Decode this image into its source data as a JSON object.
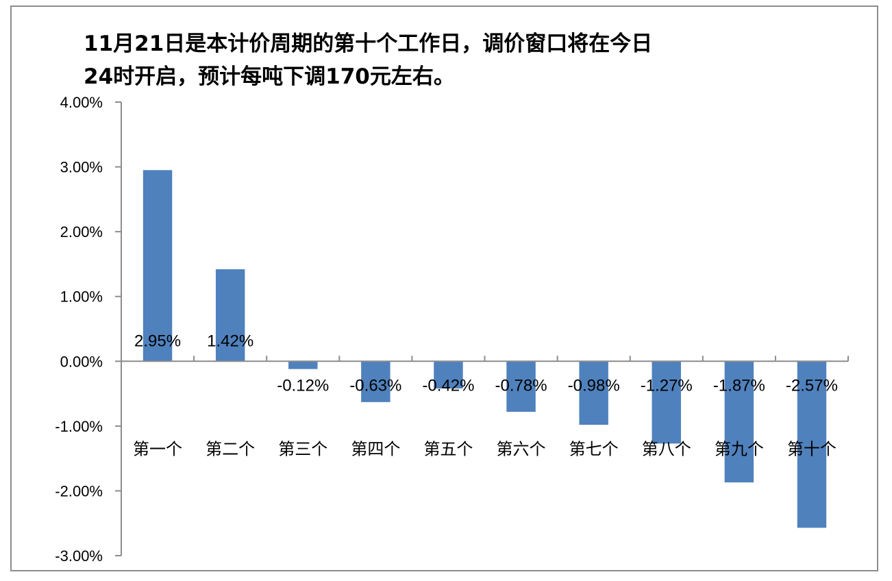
{
  "chart_data": {
    "type": "bar",
    "title_lines": [
      "11月21日是本计价周期的第十个工作日，调价窗口将在今日",
      "24时开启，预计每吨下调170元左右。"
    ],
    "categories": [
      "第一个",
      "第二个",
      "第三个",
      "第四个",
      "第五个",
      "第六个",
      "第七个",
      "第八个",
      "第九个",
      "第十个"
    ],
    "values": [
      2.95,
      1.42,
      -0.12,
      -0.63,
      -0.42,
      -0.78,
      -0.98,
      -1.27,
      -1.87,
      -2.57
    ],
    "data_labels": [
      "2.95%",
      "1.42%",
      "-0.12%",
      "-0.63%",
      "-0.42%",
      "-0.78%",
      "-0.98%",
      "-1.27%",
      "-1.87%",
      "-2.57%"
    ],
    "y_ticks": [
      4,
      3,
      2,
      1,
      0,
      -1,
      -2,
      -3
    ],
    "y_tick_labels": [
      "4.00%",
      "3.00%",
      "2.00%",
      "1.00%",
      "0.00%",
      "-1.00%",
      "-2.00%",
      "-3.00%"
    ],
    "ylim": [
      -3,
      4
    ],
    "xlabel": "",
    "ylabel": "",
    "grid": false,
    "legend": "none",
    "bar_color": "#4f81bd",
    "axis_color": "#8c8c8c"
  }
}
